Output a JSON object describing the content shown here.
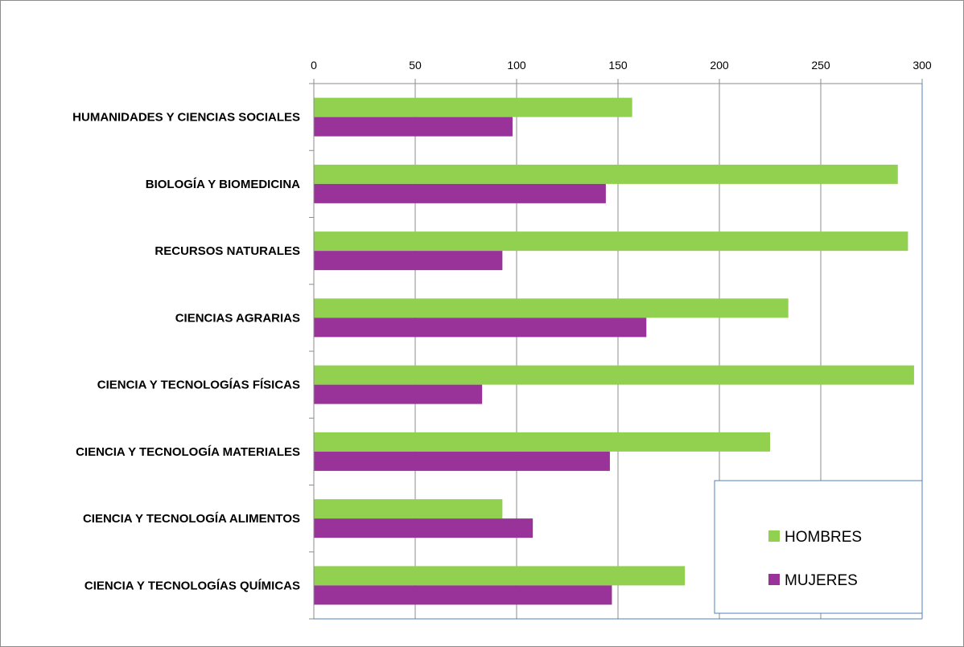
{
  "chart_data": {
    "type": "bar",
    "orientation": "horizontal",
    "categories": [
      "HUMANIDADES Y CIENCIAS SOCIALES",
      "BIOLOGÍA Y BIOMEDICINA",
      "RECURSOS NATURALES",
      "CIENCIAS AGRARIAS",
      "CIENCIA Y TECNOLOGÍAS FÍSICAS",
      "CIENCIA Y TECNOLOGÍA MATERIALES",
      "CIENCIA Y TECNOLOGÍA  ALIMENTOS",
      "CIENCIA Y TECNOLOGÍAS QUÍMICAS"
    ],
    "series": [
      {
        "name": "HOMBRES",
        "color": "#92d050",
        "values": [
          157,
          288,
          293,
          234,
          296,
          225,
          93,
          183
        ]
      },
      {
        "name": "MUJERES",
        "color": "#993399",
        "values": [
          98,
          144,
          93,
          164,
          83,
          146,
          108,
          147
        ]
      }
    ],
    "xlim": [
      0,
      300
    ],
    "x_ticks": [
      "0",
      "50",
      "100",
      "150",
      "200",
      "250",
      "300"
    ],
    "x_axis_position": "top",
    "grid": true,
    "legend_position": "bottom-right"
  }
}
